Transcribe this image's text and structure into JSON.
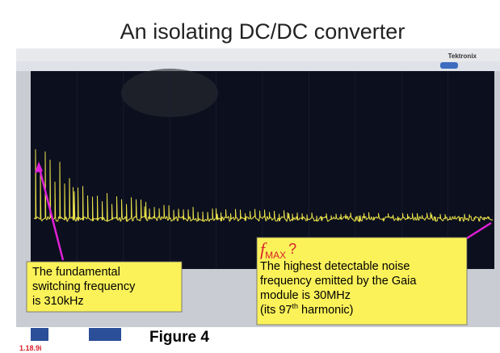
{
  "slide": {
    "title": "An isolating DC/DC converter",
    "brand": "Tektronix",
    "left_callout": [
      "The fundamental",
      "switching frequency",
      "is 310kHz"
    ],
    "right_callout": {
      "symbol": "f",
      "subscript": "MAX",
      "question": "?",
      "lines": [
        "The highest detectable noise",
        "frequency emitted by the Gaia",
        "module is 30MHz"
      ],
      "last_line": {
        "before": "(its 97",
        "superscript": "th",
        "after": " harmonic)"
      }
    },
    "caption": "Figure 4",
    "corner_note": "1.18.9i"
  }
}
